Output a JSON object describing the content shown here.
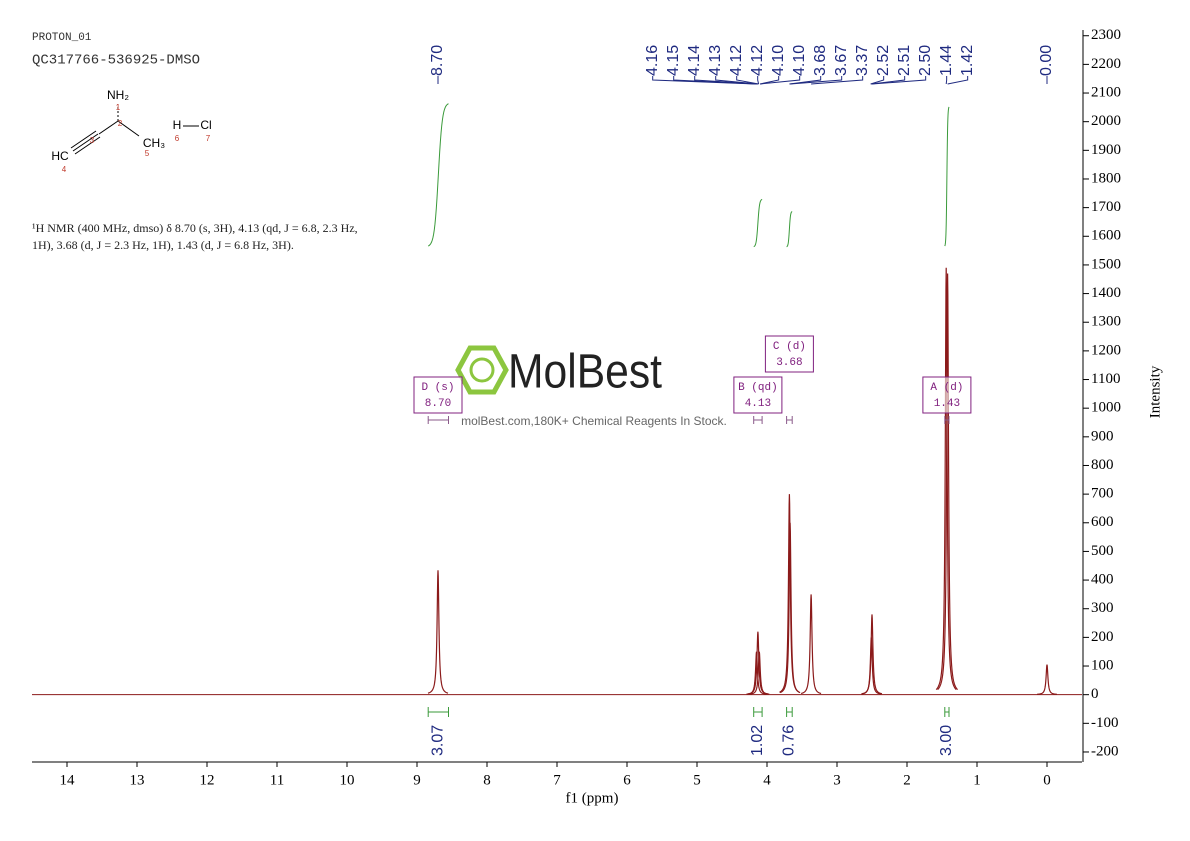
{
  "chart_data": {
    "type": "nmr",
    "experiment": "PROTON_01",
    "sample": "QC317766-536925-DMSO",
    "description": [
      "¹H NMR (400 MHz, dmso) δ 8.70 (s, 3H), 4.13 (qd, J = 6.8, 2.3 Hz,",
      "1H), 3.68 (d, J = 2.3 Hz, 1H), 1.43 (d, J = 6.8 Hz, 3H)."
    ],
    "x_label": "f1 (ppm)",
    "y_label": "Intensity",
    "x": [
      8.7,
      4.15,
      4.13,
      4.11,
      3.68,
      3.67,
      3.37,
      2.51,
      2.5,
      1.44,
      1.42,
      0
    ],
    "values": [
      434,
      150,
      220,
      150,
      700,
      600,
      350,
      200,
      280,
      1490,
      1470,
      105
    ],
    "color": "#8b1a1a",
    "xlim": [
      14.5,
      -0.5
    ],
    "xticks": [
      14,
      13,
      12,
      11,
      10,
      9,
      8,
      7,
      6,
      5,
      4,
      3,
      2,
      1,
      0
    ],
    "ylim": [
      -235,
      2320
    ],
    "yticks": [
      -200,
      -100,
      0,
      100,
      200,
      300,
      400,
      500,
      600,
      700,
      800,
      900,
      1000,
      1100,
      1200,
      1300,
      1400,
      1500,
      1600,
      1700,
      1800,
      1900,
      2000,
      2100,
      2200,
      2300
    ],
    "peak_labels": [
      {
        "value": 8.7,
        "label": "8.70"
      },
      4.16,
      4.15,
      4.14,
      4.13,
      4.12,
      4.12,
      {
        "value": 4.1,
        "label": "4.10"
      },
      {
        "value": 4.1,
        "label": "4.10"
      },
      3.68,
      3.67,
      3.37,
      2.52,
      2.51,
      {
        "value": 2.5,
        "label": "2.50"
      },
      1.44,
      1.42,
      {
        "value": 0,
        "label": "0.00"
      }
    ],
    "peak_label_color": "#1f2a80",
    "integral_color": "#3a9a3a",
    "box_color": "#80207f",
    "multiplets": [
      {
        "label": "D (s)",
        "shift": {
          "value": 8.7,
          "label": "8.70"
        },
        "integral": 3.07,
        "range": [
          8.84,
          8.55
        ]
      },
      {
        "label": "B (qd)",
        "shift": 4.13,
        "integral": 1.02,
        "range": [
          4.19,
          4.07
        ]
      },
      {
        "label": "C (d)",
        "shift": 3.68,
        "integral": 0.76,
        "range": [
          3.72,
          3.64
        ]
      },
      {
        "label": "A (d)",
        "shift": 1.43,
        "integral": {
          "value": 3,
          "label": "3.00"
        },
        "range": [
          1.46,
          1.4
        ]
      }
    ]
  },
  "structure": {
    "atoms": [
      {
        "label": "NH₂",
        "index": 1
      },
      {
        "index": 2
      },
      {
        "index": 3
      },
      {
        "label": "HC",
        "index": 4
      },
      {
        "label": "CH₃",
        "index": 5
      },
      {
        "label": "H",
        "index": 6
      },
      {
        "label": "Cl",
        "index": 7
      }
    ]
  },
  "watermark": {
    "brand": "MolBest",
    "tagline": "molBest.com,180K+ Chemical Reagents In Stock."
  }
}
